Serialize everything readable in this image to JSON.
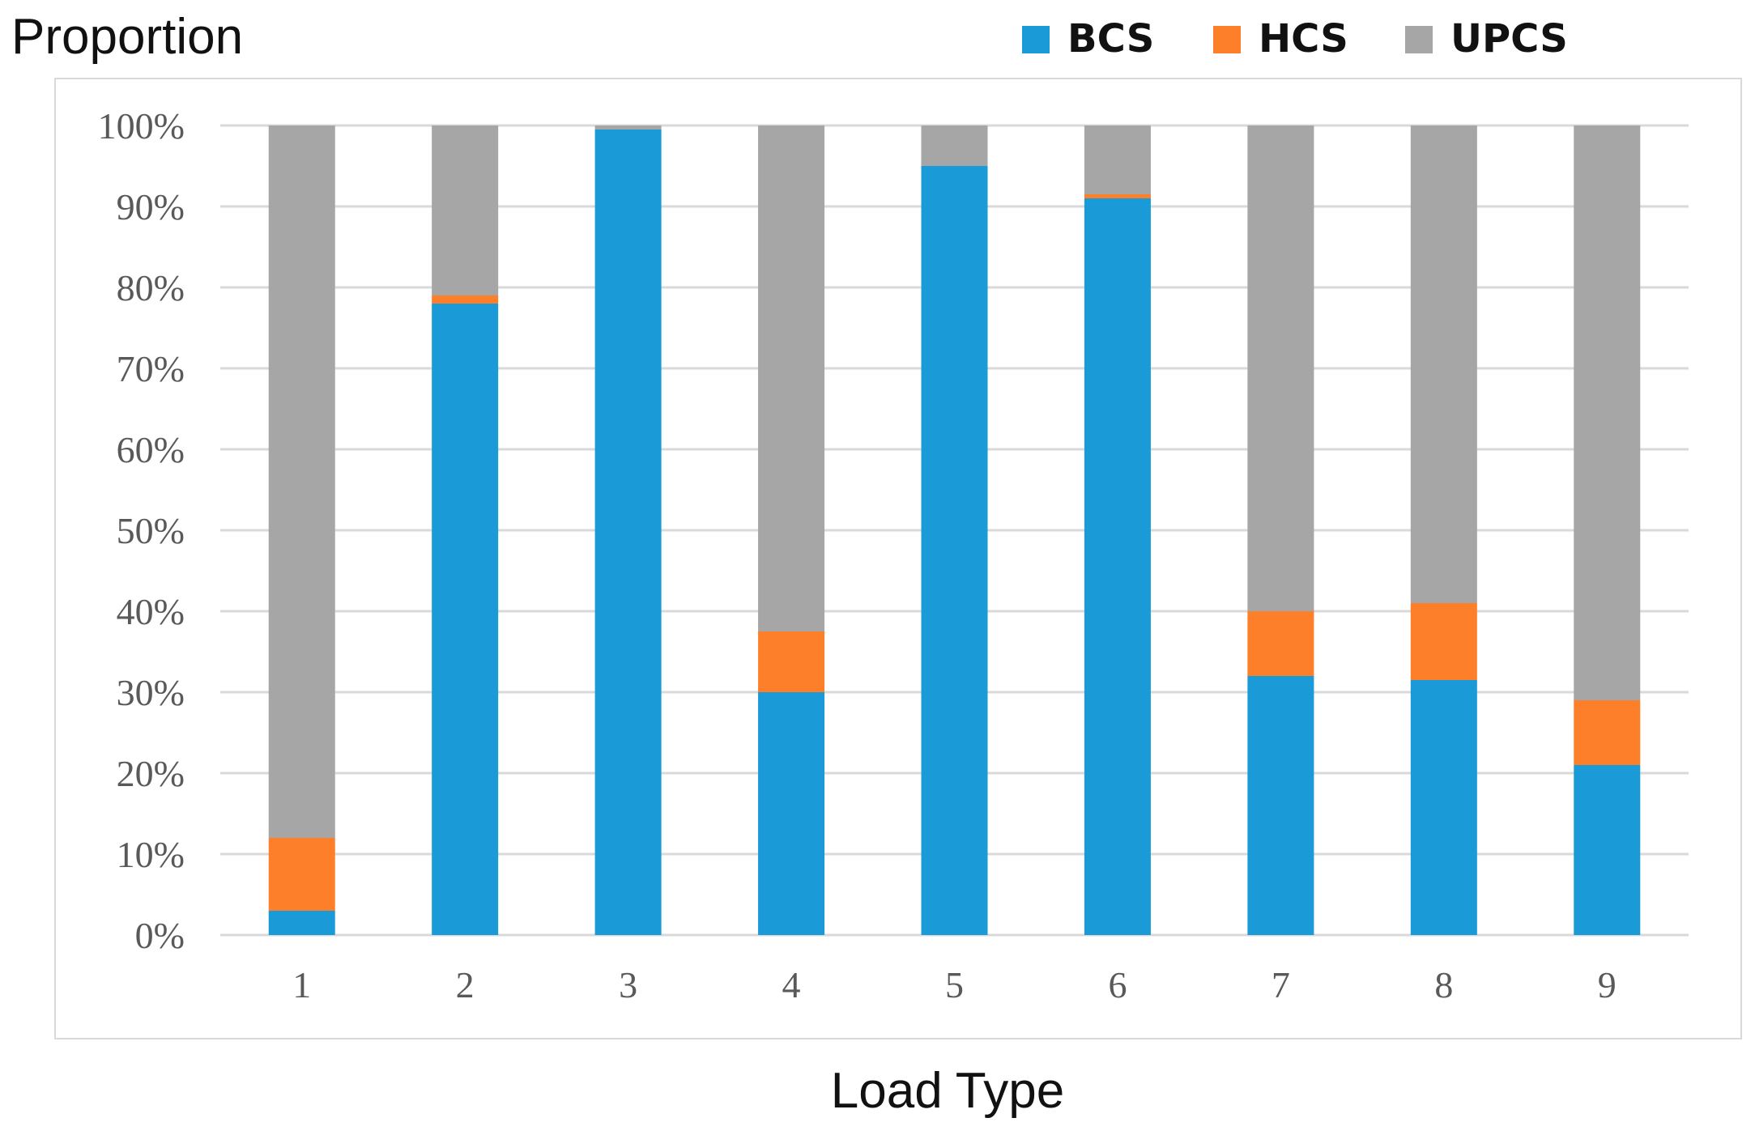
{
  "chart_data": {
    "type": "bar",
    "stacked": true,
    "normalized": true,
    "title": "",
    "ylabel": "Proportion",
    "xlabel": "Load Type",
    "categories": [
      "1",
      "2",
      "3",
      "4",
      "5",
      "6",
      "7",
      "8",
      "9"
    ],
    "ylim": [
      0,
      100
    ],
    "yticks": [
      "0%",
      "10%",
      "20%",
      "30%",
      "40%",
      "50%",
      "60%",
      "70%",
      "80%",
      "90%",
      "100%"
    ],
    "grid": true,
    "legend_position": "top",
    "series": [
      {
        "name": "BCS",
        "color": "#1a9bd7",
        "values": [
          3,
          78,
          99.5,
          30,
          95,
          91,
          32,
          31.5,
          21
        ]
      },
      {
        "name": "HCS",
        "color": "#fe7f2a",
        "values": [
          9,
          1,
          0,
          7.5,
          0,
          0.5,
          8,
          9.5,
          8
        ]
      },
      {
        "name": "UPCS",
        "color": "#a6a6a6",
        "values": [
          88,
          21,
          0.5,
          62.5,
          5,
          8.5,
          60,
          59,
          71
        ]
      }
    ]
  }
}
